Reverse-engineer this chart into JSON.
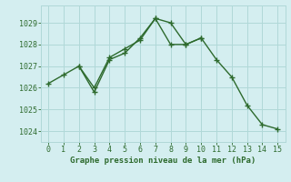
{
  "line1_x": [
    0,
    1,
    2,
    3,
    4,
    5,
    6,
    7,
    8,
    9,
    10
  ],
  "line1_y": [
    1026.2,
    1026.6,
    1027.0,
    1025.8,
    1027.3,
    1027.6,
    1028.3,
    1029.2,
    1029.0,
    1028.0,
    1028.3
  ],
  "line2_x": [
    2,
    3,
    4,
    5,
    6,
    7,
    8,
    9,
    10,
    11,
    12,
    13,
    14,
    15
  ],
  "line2_y": [
    1027.0,
    1026.0,
    1027.4,
    1027.8,
    1028.2,
    1029.2,
    1028.0,
    1028.0,
    1028.3,
    1027.3,
    1026.5,
    1025.2,
    1024.3,
    1024.1
  ],
  "line_color": "#2d6a2d",
  "bg_color": "#d4eef0",
  "grid_color": "#b0d8d8",
  "xlabel": "Graphe pression niveau de la mer (hPa)",
  "xlim": [
    -0.5,
    15.5
  ],
  "ylim": [
    1023.5,
    1029.8
  ],
  "yticks": [
    1024,
    1025,
    1026,
    1027,
    1028,
    1029
  ],
  "xticks": [
    0,
    1,
    2,
    3,
    4,
    5,
    6,
    7,
    8,
    9,
    10,
    11,
    12,
    13,
    14,
    15
  ],
  "tick_fontsize": 6,
  "xlabel_fontsize": 6.5
}
